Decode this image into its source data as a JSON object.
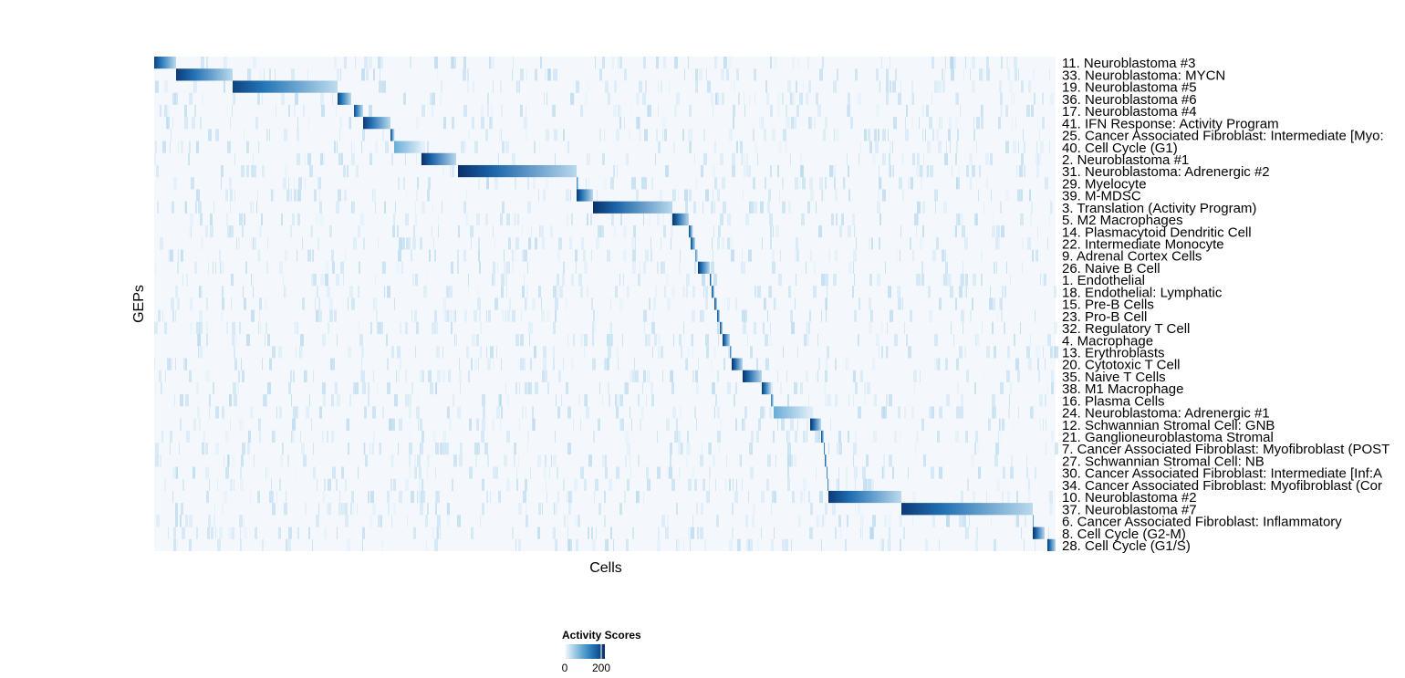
{
  "chart_data": {
    "type": "heatmap",
    "xlabel": "Cells",
    "ylabel": "GEPs",
    "legend": {
      "title": "Activity Scores",
      "ticks": [
        0,
        200
      ],
      "range": [
        0,
        220
      ],
      "placement": "bottom"
    },
    "colors": {
      "low": "#f7fbff",
      "mid": "#4a8cc4",
      "high": "#08306b"
    },
    "n_cells": 988,
    "rows": [
      {
        "label": "11. Neuroblastoma #3",
        "block": [
          0,
          24
        ],
        "peak": 200
      },
      {
        "label": "33. Neuroblastoma: MYCN",
        "block": [
          24,
          86
        ],
        "peak": 210
      },
      {
        "label": "19. Neuroblastoma #5",
        "block": [
          86,
          201
        ],
        "peak": 200
      },
      {
        "label": "36. Neuroblastoma #6",
        "block": [
          201,
          216
        ],
        "peak": 200
      },
      {
        "label": "17. Neuroblastoma #4",
        "block": [
          219,
          229
        ],
        "peak": 190
      },
      {
        "label": "41. IFN Response: Activity Program",
        "block": [
          229,
          259
        ],
        "peak": 210
      },
      {
        "label": "25. Cancer Associated Fibroblast: Intermediate [Myo:",
        "block": [
          259,
          263
        ],
        "peak": 200
      },
      {
        "label": "40. Cell Cycle (G1)",
        "block": [
          263,
          293
        ],
        "peak": 90
      },
      {
        "label": "2. Neuroblastoma #1",
        "block": [
          293,
          331
        ],
        "peak": 220
      },
      {
        "label": "31. Neuroblastoma: Adrenergic #2",
        "block": [
          333,
          463
        ],
        "peak": 220
      },
      {
        "label": "29. Myelocyte",
        "block": [
          463,
          465
        ],
        "peak": 150
      },
      {
        "label": "39. M-MDSC",
        "block": [
          463,
          481
        ],
        "peak": 210
      },
      {
        "label": "3. Translation (Activity Program)",
        "block": [
          481,
          568
        ],
        "peak": 220
      },
      {
        "label": "5. M2 Macrophages",
        "block": [
          568,
          586
        ],
        "peak": 220
      },
      {
        "label": "14. Plasmacytoid Dendritic Cell",
        "block": [
          586,
          590
        ],
        "peak": 200
      },
      {
        "label": "22. Intermediate Monocyte",
        "block": [
          588,
          593
        ],
        "peak": 200
      },
      {
        "label": "9. Adrenal Cortex Cells",
        "block": [
          593,
          596
        ],
        "peak": 120
      },
      {
        "label": "26. Naive B Cell",
        "block": [
          596,
          609
        ],
        "peak": 210
      },
      {
        "label": "1. Endothelial",
        "block": [
          609,
          611
        ],
        "peak": 200
      },
      {
        "label": "18. Endothelial: Lymphatic",
        "block": [
          611,
          614
        ],
        "peak": 200
      },
      {
        "label": "15. Pre-B Cells",
        "block": [
          614,
          617
        ],
        "peak": 200
      },
      {
        "label": "23. Pro-B Cell",
        "block": [
          617,
          620
        ],
        "peak": 200
      },
      {
        "label": "32. Regulatory T Cell",
        "block": [
          620,
          623
        ],
        "peak": 200
      },
      {
        "label": "4. Macrophage",
        "block": [
          623,
          631
        ],
        "peak": 210
      },
      {
        "label": "13. Erythroblasts",
        "block": [
          631,
          633
        ],
        "peak": 150
      },
      {
        "label": "20. Cytotoxic T Cell",
        "block": [
          633,
          645
        ],
        "peak": 220
      },
      {
        "label": "35. Naive T Cells",
        "block": [
          645,
          666
        ],
        "peak": 220
      },
      {
        "label": "38. M1 Macrophage",
        "block": [
          666,
          676
        ],
        "peak": 210
      },
      {
        "label": "16. Plasma Cells",
        "block": [
          676,
          679
        ],
        "peak": 150
      },
      {
        "label": "24. Neuroblastoma: Adrenergic #1",
        "block": [
          679,
          719
        ],
        "peak": 90
      },
      {
        "label": "12. Schwannian Stromal Cell: GNB",
        "block": [
          719,
          731
        ],
        "peak": 220
      },
      {
        "label": "21. Ganglioneuroblastoma Stromal",
        "block": [
          731,
          734
        ],
        "peak": 200
      },
      {
        "label": "7. Cancer Associated Fibroblast: Myofibroblast (POST",
        "block": [
          734,
          735
        ],
        "peak": 200
      },
      {
        "label": "27. Schwannian Stromal Cell: NB",
        "block": [
          735,
          737
        ],
        "peak": 200
      },
      {
        "label": "30. Cancer Associated Fibroblast: Intermediate [Inf:A",
        "block": [
          737,
          738
        ],
        "peak": 200
      },
      {
        "label": "34. Cancer Associated Fibroblast: Myofibroblast (Cor",
        "block": [
          738,
          739
        ],
        "peak": 200
      },
      {
        "label": "10. Neuroblastoma #2",
        "block": [
          739,
          819
        ],
        "peak": 210
      },
      {
        "label": "37. Neuroblastoma #7",
        "block": [
          819,
          963
        ],
        "peak": 210
      },
      {
        "label": "6. Cancer Associated Fibroblast: Inflammatory",
        "block": [
          963,
          964
        ],
        "peak": 150
      },
      {
        "label": "8. Cell Cycle (G2-M)",
        "block": [
          963,
          976
        ],
        "peak": 220
      },
      {
        "label": "28. Cell Cycle (G1/S)",
        "block": [
          979,
          988
        ],
        "peak": 210
      }
    ]
  }
}
